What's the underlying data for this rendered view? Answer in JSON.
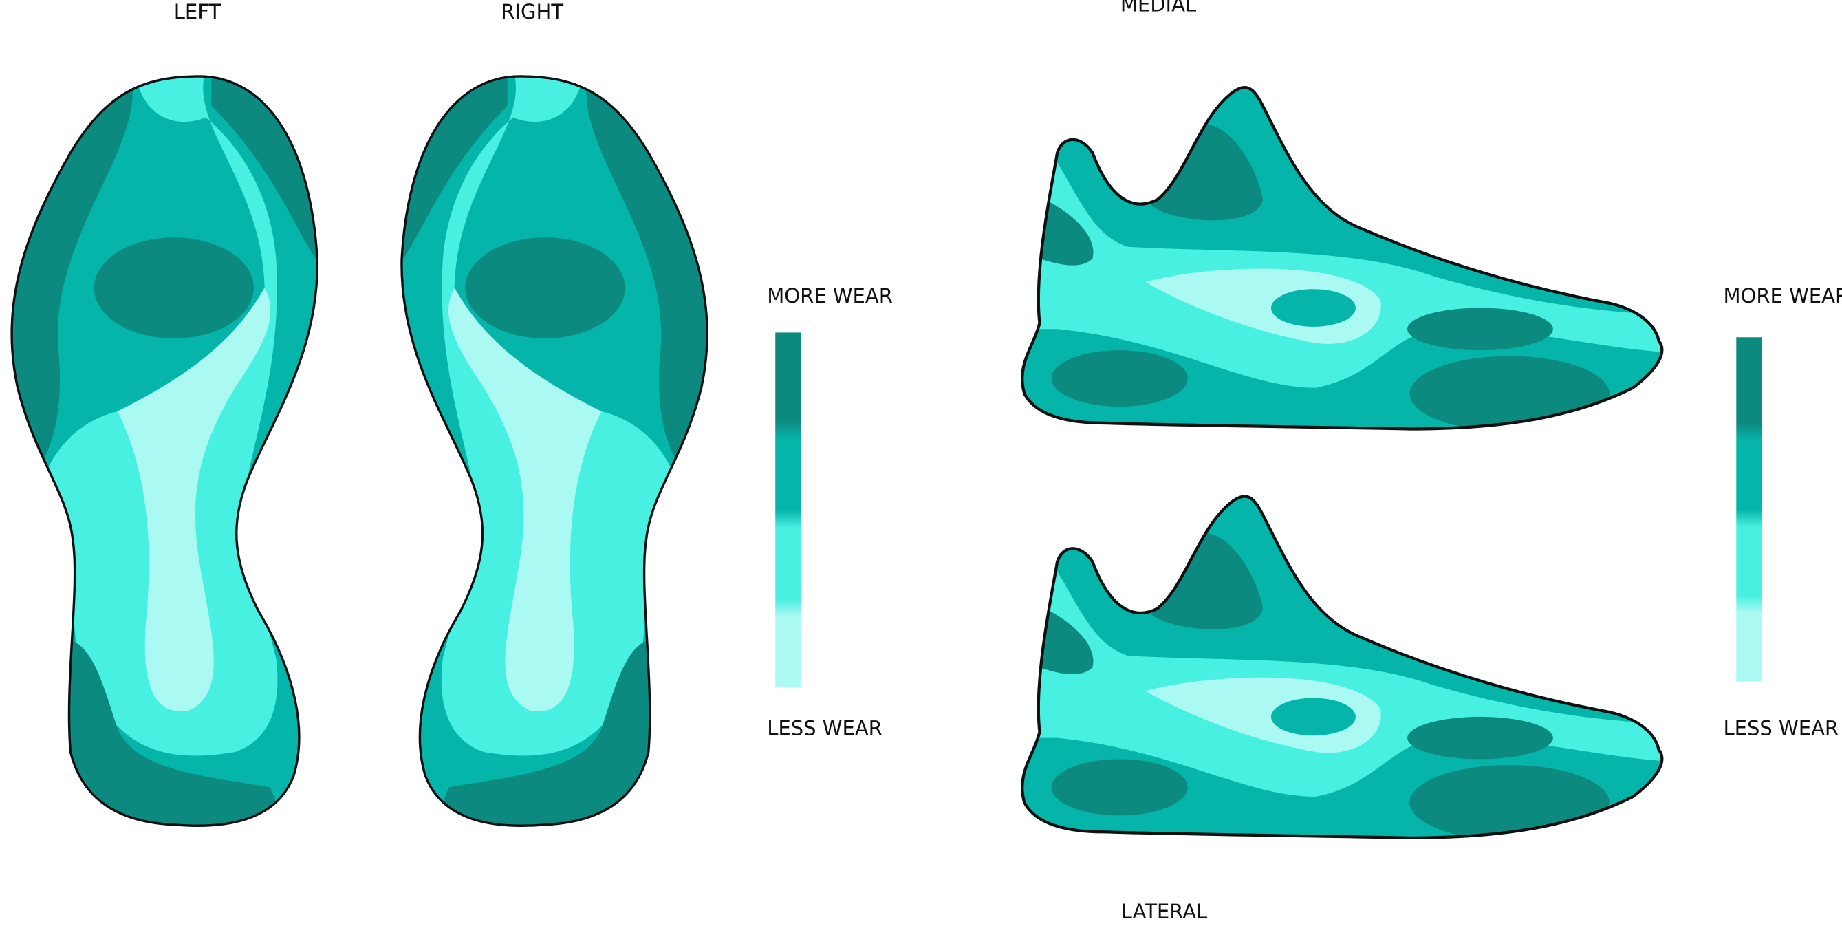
{
  "soles": {
    "left_label": "LEFT",
    "right_label": "RIGHT"
  },
  "shoes": {
    "top_label": "MEDIAL",
    "bottom_label": "LATERAL"
  },
  "legends": [
    {
      "top": "MORE WEAR",
      "bottom": "LESS WEAR"
    },
    {
      "top": "MORE WEAR",
      "bottom": "LESS WEAR"
    }
  ]
}
